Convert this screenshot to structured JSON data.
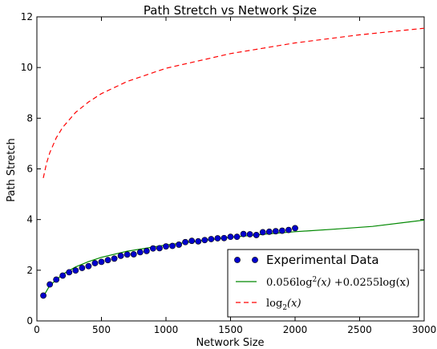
{
  "chart_data": {
    "type": "line",
    "title": "Path Stretch vs Network Size",
    "xlabel": "Network Size",
    "ylabel": "Path Stretch",
    "xlim": [
      0,
      3000
    ],
    "ylim": [
      0,
      12
    ],
    "x_ticks": [
      0,
      500,
      1000,
      1500,
      2000,
      2500,
      3000
    ],
    "y_ticks": [
      0,
      2,
      4,
      6,
      8,
      10,
      12
    ],
    "x_tick_labels": [
      "0",
      "500",
      "1000",
      "1500",
      "2000",
      "2500",
      "3000"
    ],
    "y_tick_labels": [
      "0",
      "2",
      "4",
      "6",
      "8",
      "10",
      "12"
    ],
    "grid": false,
    "legend_position": "bottom-right",
    "series": [
      {
        "name": "Experimental Data",
        "kind": "scatter",
        "color": "#0000cc",
        "x": [
          50,
          100,
          150,
          200,
          250,
          300,
          350,
          400,
          450,
          500,
          550,
          600,
          650,
          700,
          750,
          800,
          850,
          900,
          950,
          1000,
          1050,
          1100,
          1150,
          1200,
          1250,
          1300,
          1350,
          1400,
          1450,
          1500,
          1550,
          1600,
          1650,
          1700,
          1750,
          1800,
          1850,
          1900,
          1950,
          2000
        ],
        "y": [
          1.0,
          1.44,
          1.63,
          1.79,
          1.92,
          1.99,
          2.09,
          2.16,
          2.28,
          2.33,
          2.4,
          2.46,
          2.57,
          2.62,
          2.63,
          2.71,
          2.76,
          2.86,
          2.87,
          2.94,
          2.96,
          3.01,
          3.11,
          3.16,
          3.14,
          3.19,
          3.23,
          3.26,
          3.27,
          3.32,
          3.32,
          3.43,
          3.42,
          3.39,
          3.5,
          3.52,
          3.54,
          3.56,
          3.59,
          3.66
        ]
      },
      {
        "name": "0.056log²(x) + 0.0255log(x)",
        "kind": "line",
        "color": "#008800",
        "style": "solid",
        "x": [
          50,
          100,
          200,
          300,
          400,
          500,
          700,
          1000,
          1300,
          1500,
          1800,
          2000,
          2300,
          2600,
          3000
        ],
        "y": [
          0.96,
          1.4,
          1.84,
          2.13,
          2.34,
          2.51,
          2.75,
          3.0,
          3.18,
          3.3,
          3.44,
          3.52,
          3.62,
          3.73,
          3.98
        ]
      },
      {
        "name": "log₂(x)",
        "kind": "line",
        "color": "#ff0000",
        "style": "dashed",
        "x": [
          50,
          75,
          100,
          150,
          200,
          300,
          400,
          500,
          700,
          1000,
          1500,
          2000,
          2500,
          3000
        ],
        "y": [
          5.64,
          6.23,
          6.64,
          7.23,
          7.64,
          8.23,
          8.64,
          8.97,
          9.45,
          9.97,
          10.55,
          10.97,
          11.29,
          11.55
        ]
      }
    ],
    "legend": [
      {
        "label": "Experimental Data",
        "marker": "circle",
        "color": "#0000cc"
      },
      {
        "label_parts": [
          "0.056log",
          "2",
          "(x)",
          "+0.0255log(x)"
        ],
        "marker": "line",
        "color": "#008800"
      },
      {
        "label_parts": [
          "log",
          "2",
          "(x)"
        ],
        "marker": "dashed-line",
        "color": "#ff0000"
      }
    ]
  }
}
